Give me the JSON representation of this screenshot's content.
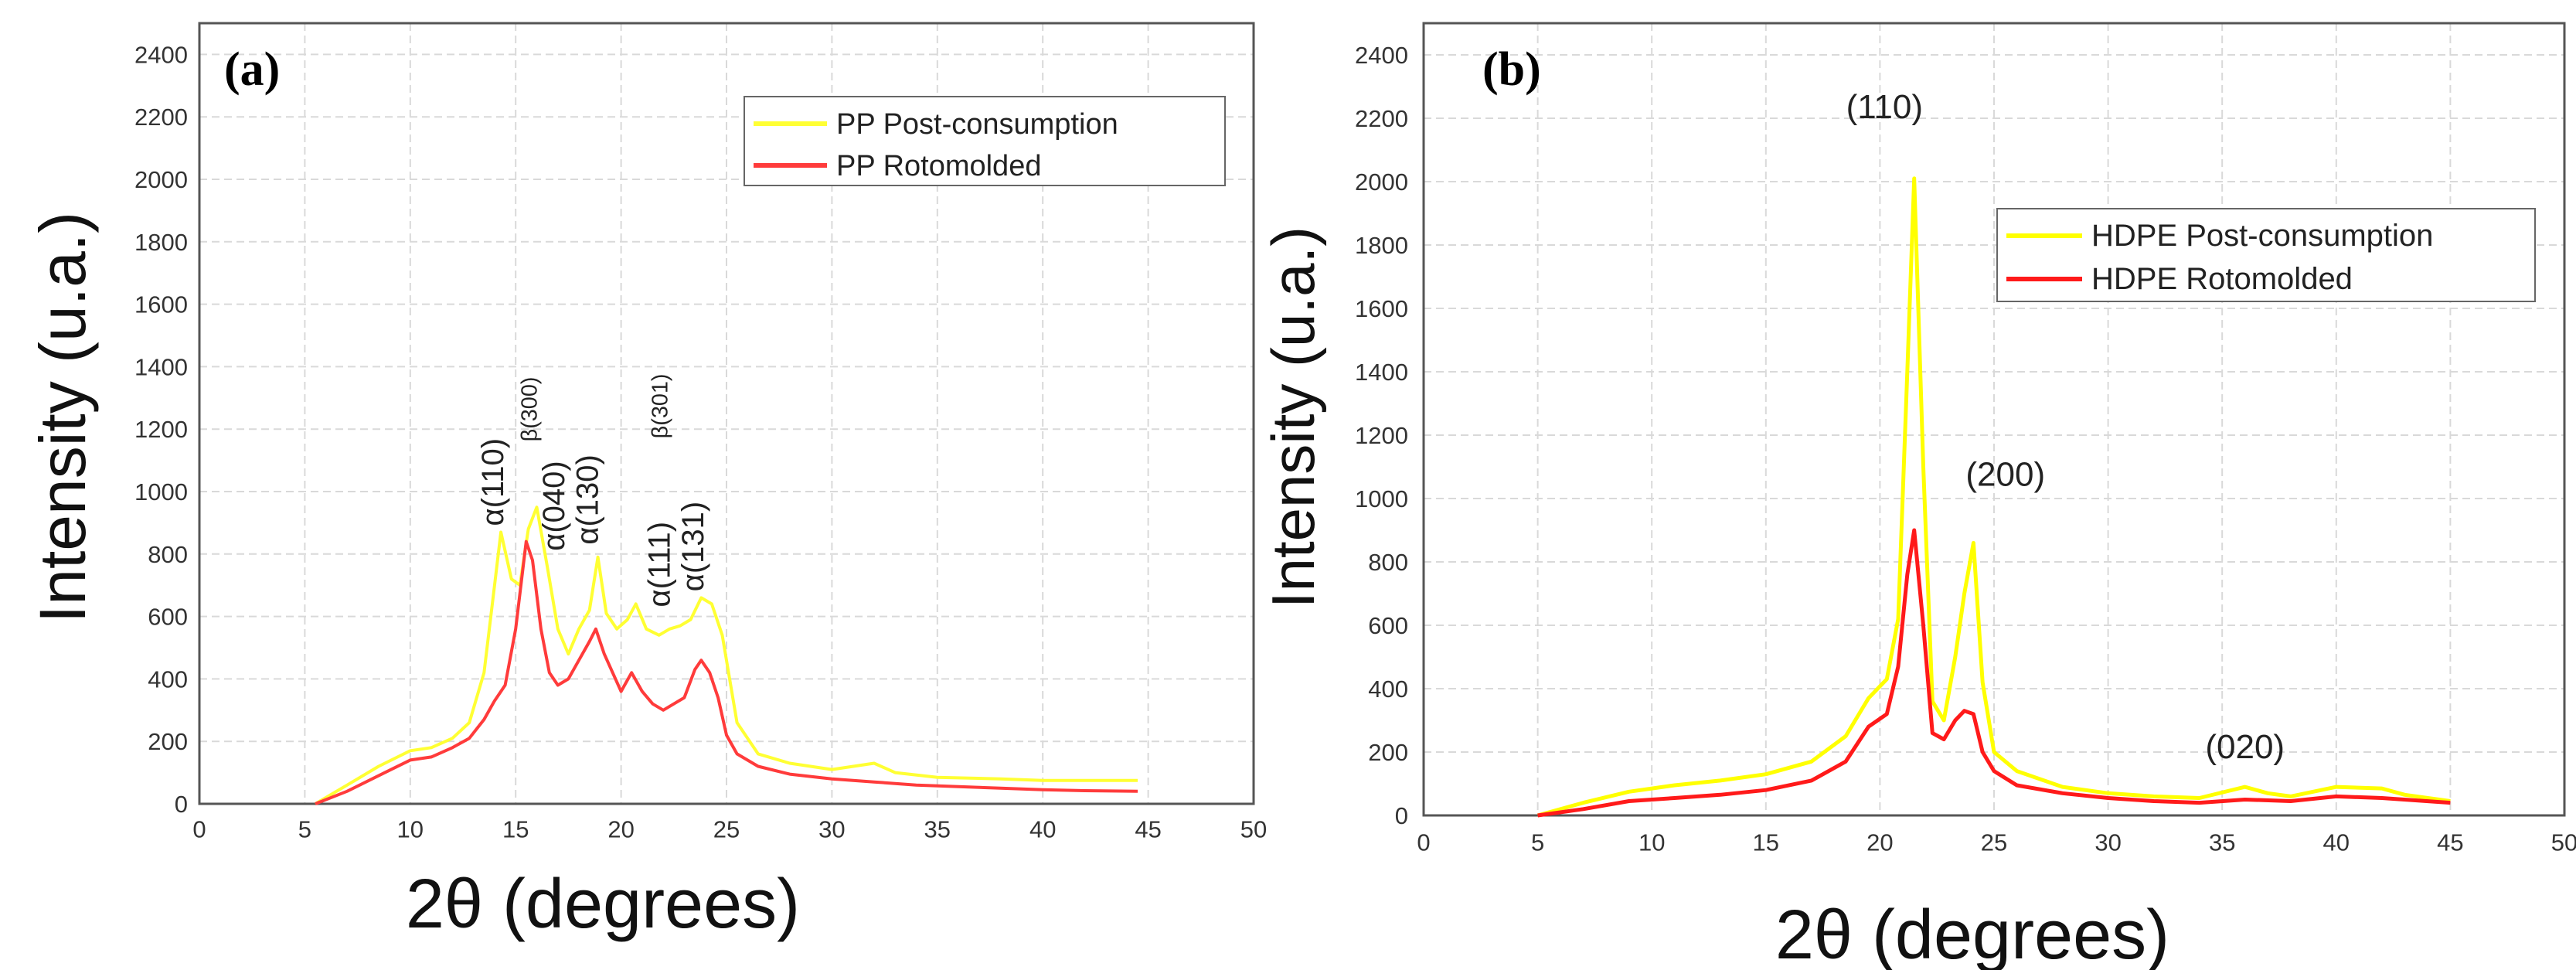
{
  "figure": {
    "panels": [
      {
        "label": "(a)"
      },
      {
        "label": "(b)"
      }
    ]
  },
  "chart_data": [
    {
      "type": "line",
      "panel": "(a)",
      "title": "",
      "xlabel": "2θ (degrees)",
      "ylabel": "Intensity (u.a.)",
      "xlim": [
        0,
        50
      ],
      "ylim": [
        0,
        2500
      ],
      "xticks": [
        0,
        5,
        10,
        15,
        20,
        25,
        30,
        35,
        40,
        45,
        50
      ],
      "yticks": [
        0,
        200,
        400,
        600,
        800,
        1000,
        1200,
        1400,
        1600,
        1800,
        2000,
        2200,
        2400
      ],
      "grid": true,
      "legend_position": "top-right",
      "series": [
        {
          "name": "PP Post-consumption",
          "color": "#ffff33",
          "x": [
            5.5,
            7,
            8.5,
            10,
            11,
            12,
            12.8,
            13.5,
            14,
            14.3,
            14.8,
            15.2,
            15.6,
            16,
            16.5,
            17,
            17.5,
            18,
            18.5,
            18.9,
            19.3,
            19.8,
            20.3,
            20.7,
            21.2,
            21.8,
            22.3,
            22.8,
            23.3,
            23.8,
            24.3,
            24.8,
            25.5,
            26.5,
            28,
            30,
            32,
            33,
            35,
            38,
            40,
            42,
            44.5
          ],
          "y": [
            0,
            60,
            120,
            170,
            180,
            210,
            260,
            420,
            700,
            870,
            720,
            700,
            880,
            950,
            760,
            560,
            480,
            560,
            620,
            790,
            610,
            560,
            590,
            640,
            560,
            540,
            560,
            570,
            590,
            660,
            640,
            540,
            260,
            160,
            130,
            110,
            130,
            100,
            85,
            80,
            75,
            75,
            75
          ]
        },
        {
          "name": "PP Rotomolded",
          "color": "#ff3b3b",
          "x": [
            5.5,
            7,
            8.5,
            10,
            11,
            12,
            12.8,
            13.5,
            14,
            14.5,
            15,
            15.5,
            15.8,
            16.2,
            16.6,
            17,
            17.5,
            18,
            18.5,
            18.8,
            19.2,
            19.6,
            20,
            20.5,
            21,
            21.5,
            22,
            22.5,
            23,
            23.5,
            23.8,
            24.2,
            24.6,
            25,
            25.5,
            26.5,
            28,
            30,
            32,
            34,
            36,
            38,
            40,
            42,
            44.5
          ],
          "y": [
            0,
            40,
            90,
            140,
            150,
            180,
            210,
            270,
            330,
            380,
            560,
            840,
            780,
            560,
            420,
            380,
            400,
            460,
            520,
            560,
            480,
            420,
            360,
            420,
            360,
            320,
            300,
            320,
            340,
            430,
            460,
            420,
            340,
            220,
            160,
            120,
            95,
            80,
            70,
            60,
            55,
            50,
            45,
            42,
            40
          ]
        }
      ],
      "annotations": [
        {
          "text": "α(110)",
          "x": 14.4,
          "y": 890,
          "rotation": "vertical"
        },
        {
          "text": "β(300)",
          "x": 16.0,
          "y": 1160,
          "rotation": "vertical"
        },
        {
          "text": "α(040)",
          "x": 17.3,
          "y": 810,
          "rotation": "vertical"
        },
        {
          "text": "α(130)",
          "x": 18.9,
          "y": 830,
          "rotation": "vertical"
        },
        {
          "text": "β(301)",
          "x": 22.2,
          "y": 1170,
          "rotation": "vertical"
        },
        {
          "text": "α(111)",
          "x": 22.3,
          "y": 630,
          "rotation": "vertical"
        },
        {
          "text": "α(131)",
          "x": 23.9,
          "y": 680,
          "rotation": "vertical"
        }
      ]
    },
    {
      "type": "line",
      "panel": "(b)",
      "title": "",
      "xlabel": "2θ (degrees)",
      "ylabel": "Intensity (u.a.)",
      "xlim": [
        0,
        50
      ],
      "ylim": [
        0,
        2500
      ],
      "xticks": [
        0,
        5,
        10,
        15,
        20,
        25,
        30,
        35,
        40,
        45,
        50
      ],
      "yticks": [
        0,
        200,
        400,
        600,
        800,
        1000,
        1200,
        1400,
        1600,
        1800,
        2000,
        2200,
        2400
      ],
      "grid": true,
      "legend_position": "top-right",
      "series": [
        {
          "name": "HDPE Post-consumption",
          "color": "#ffff00",
          "x": [
            5,
            7,
            9,
            11,
            13,
            15,
            17,
            18.5,
            19.5,
            20.3,
            20.8,
            21.2,
            21.5,
            21.9,
            22.3,
            22.8,
            23.3,
            23.7,
            24.1,
            24.5,
            25,
            26,
            28,
            30,
            32,
            34,
            36,
            37,
            38,
            40,
            42,
            43,
            45
          ],
          "y": [
            0,
            40,
            75,
            95,
            110,
            130,
            170,
            250,
            370,
            430,
            620,
            1400,
            2010,
            1100,
            360,
            300,
            500,
            700,
            860,
            420,
            200,
            140,
            90,
            70,
            60,
            55,
            90,
            70,
            60,
            90,
            85,
            65,
            45
          ]
        },
        {
          "name": "HDPE Rotomolded",
          "color": "#ff1a1a",
          "x": [
            5,
            7,
            9,
            11,
            13,
            15,
            17,
            18.5,
            19.5,
            20.3,
            20.8,
            21.2,
            21.5,
            21.9,
            22.3,
            22.8,
            23.3,
            23.7,
            24.1,
            24.5,
            25,
            26,
            28,
            30,
            32,
            34,
            36,
            38,
            40,
            42,
            45
          ],
          "y": [
            0,
            20,
            45,
            55,
            65,
            80,
            110,
            170,
            280,
            320,
            470,
            760,
            900,
            600,
            260,
            240,
            300,
            330,
            320,
            200,
            140,
            95,
            70,
            55,
            45,
            40,
            50,
            45,
            60,
            55,
            40
          ]
        }
      ],
      "annotations": [
        {
          "text": "(110)",
          "x": 20.2,
          "y": 2200,
          "rotation": "none"
        },
        {
          "text": "(200)",
          "x": 25.5,
          "y": 1040,
          "rotation": "none"
        },
        {
          "text": "(020)",
          "x": 36.0,
          "y": 180,
          "rotation": "none"
        }
      ]
    }
  ]
}
